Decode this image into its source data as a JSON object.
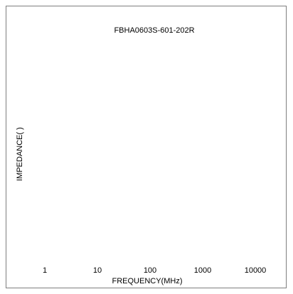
{
  "chart_data": {
    "type": "line",
    "title": "FBHA0603S-601-202R",
    "xlabel": "FREQUENCY(MHz)",
    "ylabel": "IMPEDANCE(  )",
    "xscale": "log",
    "xlim": [
      1,
      10000
    ],
    "x_ticks": [
      "1",
      "10",
      "100",
      "1000",
      "10000"
    ],
    "series": [],
    "grid": false,
    "legend": "none"
  }
}
